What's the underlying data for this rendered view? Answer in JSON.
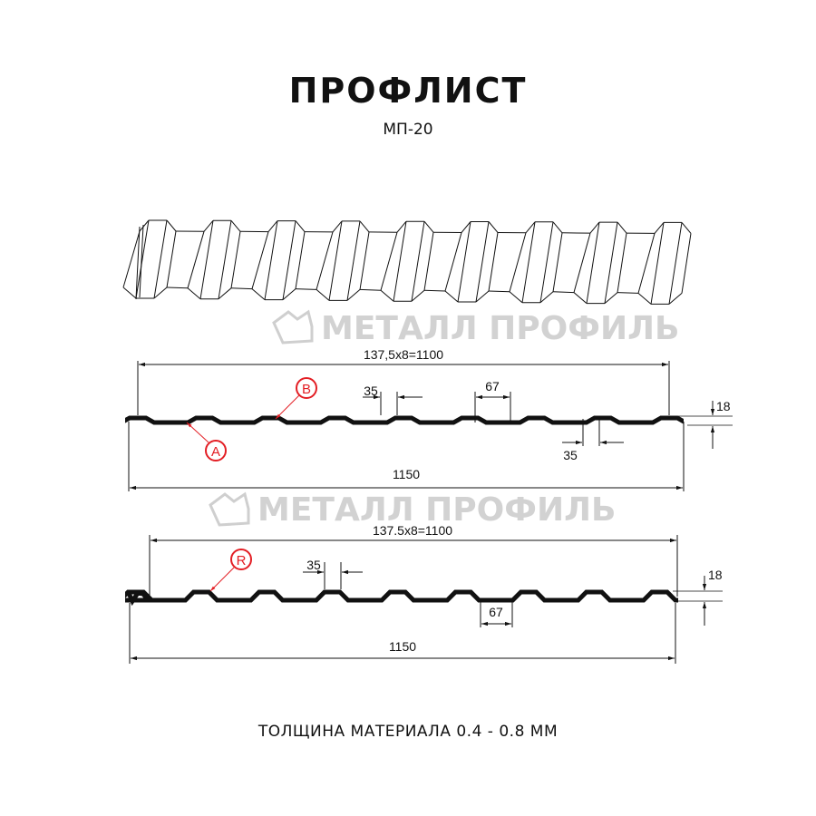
{
  "header": {
    "title": "ПРОФЛИСТ",
    "model": "МП-20"
  },
  "watermark": {
    "text": "МЕТАЛЛ ПРОФИЛЬ"
  },
  "profile_a": {
    "span_label": "137,5x8=1100",
    "total_label": "1150",
    "top_width_label": "35",
    "bottom_width_label": "67",
    "bottom_gap_label": "35",
    "height_label": "18",
    "callouts": [
      "A",
      "B"
    ]
  },
  "profile_b": {
    "span_label": "137.5x8=1100",
    "total_label": "1150",
    "top_width_label": "35",
    "bottom_width_label": "67",
    "height_label": "18",
    "callouts": [
      "R"
    ]
  },
  "footer": {
    "thickness": "ТОЛЩИНА МАТЕРИАЛА 0.4 - 0.8 ММ"
  },
  "colors": {
    "profile": "#111111",
    "callout": "#e31e24",
    "watermark": "#c8c8c8"
  }
}
